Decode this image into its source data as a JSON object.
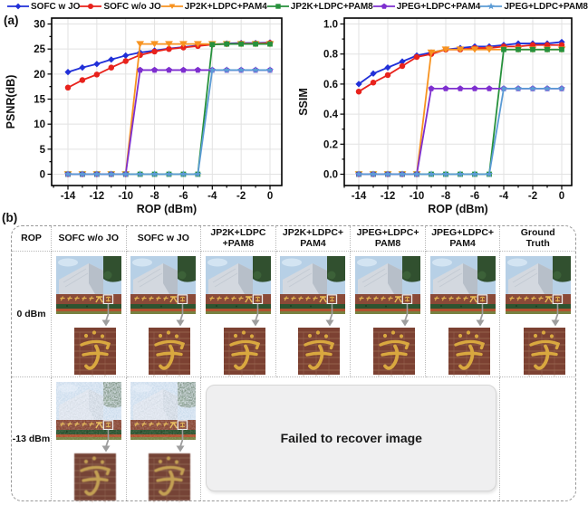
{
  "panel_a": {
    "label": "(a)"
  },
  "panel_b": {
    "label": "(b)"
  },
  "colors": {
    "grid": "#e2e2e2",
    "frame": "#000000",
    "arrow": "#9e9e9e",
    "failed_box_bg": "#efeff0",
    "table_border": "#999999",
    "brick": "#7c4132",
    "gold": "#d9a83f"
  },
  "series_defs": [
    {
      "name": "SOFC w JO",
      "color": "#2130d8",
      "marker": "diamond"
    },
    {
      "name": "SOFC w/o JO",
      "color": "#e8221c",
      "marker": "circle"
    },
    {
      "name": "JP2K+LDPC+PAM4",
      "color": "#f79320",
      "marker": "triangle-down"
    },
    {
      "name": "JP2K+LDPC+PAM8",
      "color": "#27913c",
      "marker": "square"
    },
    {
      "name": "JPEG+LDPC+PAM4",
      "color": "#7e2fcf",
      "marker": "pentagon"
    },
    {
      "name": "JPEG+LDPC+PAM8",
      "color": "#5b9bd5",
      "marker": "star"
    }
  ],
  "chart_data": [
    {
      "type": "line",
      "title": "",
      "xlabel": "ROP (dBm)",
      "ylabel": "PSNR(dB)",
      "x": [
        -14,
        -13,
        -12,
        -11,
        -10,
        -9,
        -8,
        -7,
        -6,
        -5,
        -4,
        -3,
        -2,
        -1,
        0
      ],
      "xticks": [
        -14,
        -12,
        -10,
        -8,
        -6,
        -4,
        -2,
        0
      ],
      "yticks": [
        0,
        5,
        10,
        15,
        20,
        25,
        30
      ],
      "xlim": [
        -15.2,
        0.9
      ],
      "ylim": [
        -2.3,
        31.3
      ],
      "grid": true,
      "legend_position": "top",
      "ytick_decimals": 0,
      "series": [
        {
          "name": "SOFC w JO",
          "values": [
            20.4,
            21.3,
            22.0,
            22.9,
            23.7,
            24.3,
            24.7,
            25.1,
            25.4,
            25.7,
            25.9,
            26.1,
            26.2,
            26.2,
            26.3
          ]
        },
        {
          "name": "SOFC w/o JO",
          "values": [
            17.3,
            18.8,
            19.9,
            21.3,
            22.6,
            23.8,
            24.5,
            25.0,
            25.3,
            25.6,
            25.9,
            26.0,
            26.1,
            26.1,
            26.2
          ]
        },
        {
          "name": "JP2K+LDPC+PAM4",
          "values": [
            0,
            0,
            0,
            0,
            0,
            26.0,
            26.0,
            26.0,
            26.0,
            26.0,
            26.0,
            26.0,
            26.0,
            26.0,
            26.0
          ]
        },
        {
          "name": "JP2K+LDPC+PAM8",
          "values": [
            0,
            0,
            0,
            0,
            0,
            0,
            0,
            0,
            0,
            0,
            25.9,
            26.0,
            26.0,
            26.0,
            26.0
          ]
        },
        {
          "name": "JPEG+LDPC+PAM4",
          "values": [
            0,
            0,
            0,
            0,
            0,
            20.8,
            20.8,
            20.8,
            20.8,
            20.8,
            20.8,
            20.8,
            20.8,
            20.8,
            20.8
          ]
        },
        {
          "name": "JPEG+LDPC+PAM8",
          "values": [
            0,
            0,
            0,
            0,
            0,
            0,
            0,
            0,
            0,
            0,
            20.8,
            20.8,
            20.8,
            20.8,
            20.8
          ]
        }
      ]
    },
    {
      "type": "line",
      "title": "",
      "xlabel": "ROP (dBm)",
      "ylabel": "SSIM",
      "x": [
        -14,
        -13,
        -12,
        -11,
        -10,
        -9,
        -8,
        -7,
        -6,
        -5,
        -4,
        -3,
        -2,
        -1,
        0
      ],
      "xticks": [
        -14,
        -12,
        -10,
        -8,
        -6,
        -4,
        -2,
        0
      ],
      "yticks": [
        0.0,
        0.2,
        0.4,
        0.6,
        0.8,
        1.0
      ],
      "xlim": [
        -15.2,
        0.9
      ],
      "ylim": [
        -0.075,
        1.04
      ],
      "grid": true,
      "legend_position": "top",
      "ytick_decimals": 1,
      "series": [
        {
          "name": "SOFC w JO",
          "values": [
            0.6,
            0.67,
            0.71,
            0.75,
            0.79,
            0.81,
            0.83,
            0.84,
            0.85,
            0.85,
            0.86,
            0.87,
            0.87,
            0.87,
            0.88
          ]
        },
        {
          "name": "SOFC w/o JO",
          "values": [
            0.55,
            0.61,
            0.66,
            0.72,
            0.78,
            0.8,
            0.83,
            0.83,
            0.84,
            0.84,
            0.85,
            0.85,
            0.86,
            0.86,
            0.86
          ]
        },
        {
          "name": "JP2K+LDPC+PAM4",
          "values": [
            0,
            0,
            0,
            0,
            0,
            0.81,
            0.83,
            0.83,
            0.83,
            0.83,
            0.83,
            0.83,
            0.83,
            0.83,
            0.83
          ]
        },
        {
          "name": "JP2K+LDPC+PAM8",
          "values": [
            0,
            0,
            0,
            0,
            0,
            0,
            0,
            0,
            0,
            0,
            0.83,
            0.83,
            0.83,
            0.83,
            0.83
          ]
        },
        {
          "name": "JPEG+LDPC+PAM4",
          "values": [
            0,
            0,
            0,
            0,
            0,
            0.57,
            0.57,
            0.57,
            0.57,
            0.57,
            0.57,
            0.57,
            0.57,
            0.57,
            0.57
          ]
        },
        {
          "name": "JPEG+LDPC+PAM8",
          "values": [
            0,
            0,
            0,
            0,
            0,
            0,
            0,
            0,
            0,
            0,
            0.57,
            0.57,
            0.57,
            0.57,
            0.57
          ]
        }
      ]
    }
  ],
  "results_table": {
    "columns": [
      "ROP",
      "SOFC w/o JO",
      "SOFC w JO",
      "JP2K+LDPC\n+PAM8",
      "JP2K+LDPC+\nPAM4",
      "JPEG+LDPC+\nPAM8",
      "JPEG+LDPC+\nPAM4",
      "Ground\nTruth"
    ],
    "rows": [
      {
        "label": "0 dBm",
        "cells": [
          {
            "type": "recovered"
          },
          {
            "type": "recovered"
          },
          {
            "type": "recovered"
          },
          {
            "type": "recovered"
          },
          {
            "type": "recovered"
          },
          {
            "type": "recovered"
          },
          {
            "type": "recovered"
          }
        ]
      },
      {
        "label": "-13 dBm",
        "cells": [
          {
            "type": "noisy"
          },
          {
            "type": "noisy"
          },
          {
            "type": "failed",
            "span": 4
          },
          {
            "type": "empty"
          }
        ]
      }
    ],
    "failed_text": "Failed to recover image",
    "photo": {
      "wall_text": "北京邮电大学",
      "zoom_glyph": "学"
    }
  }
}
